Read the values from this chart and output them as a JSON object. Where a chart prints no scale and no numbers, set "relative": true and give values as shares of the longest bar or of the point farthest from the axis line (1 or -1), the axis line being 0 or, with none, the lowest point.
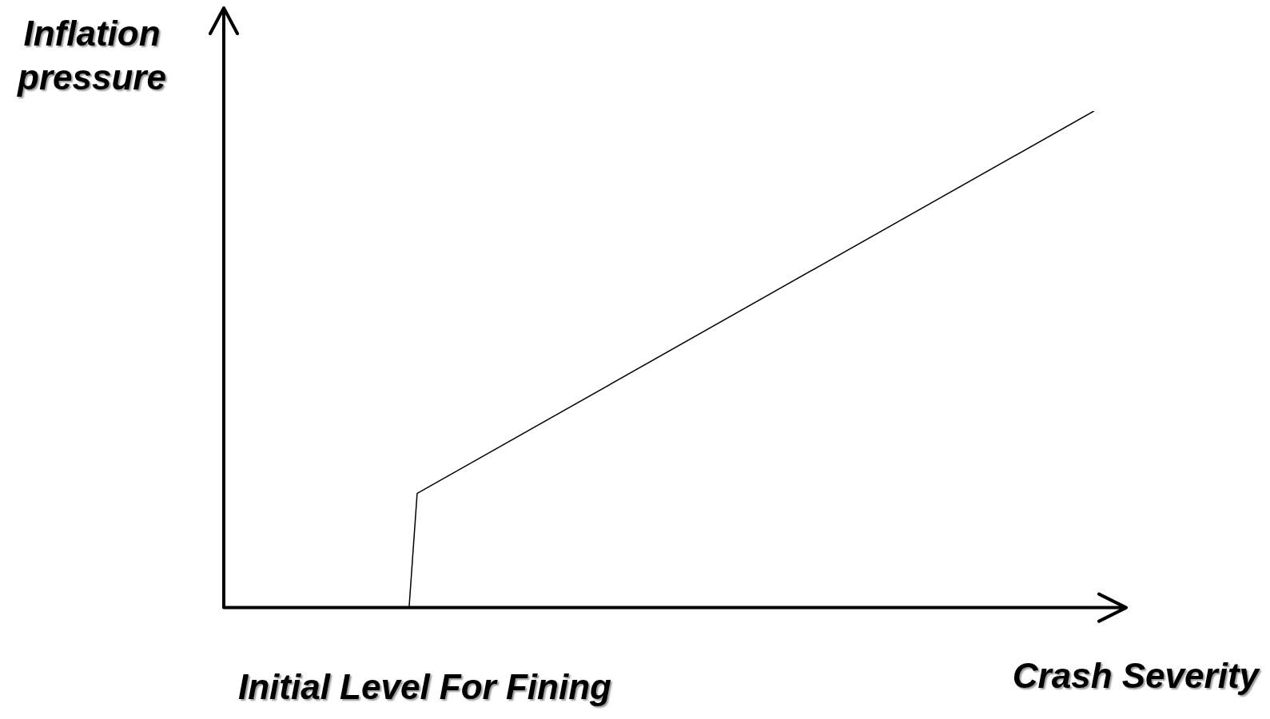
{
  "chart_data": {
    "type": "line",
    "relative": true,
    "xlabel": "Crash Severity",
    "ylabel": "Inflation pressure",
    "annotations": [
      "Initial Level For Fining"
    ],
    "categories": [
      null,
      null,
      null,
      null,
      null,
      null,
      null,
      null,
      null,
      null,
      null,
      null,
      null,
      null,
      null,
      null,
      null,
      null,
      null,
      null,
      null,
      null,
      null,
      null,
      null,
      null,
      null,
      null,
      null,
      null,
      null,
      null,
      null,
      null,
      null,
      null,
      null,
      null,
      null,
      null,
      null,
      null,
      null,
      null,
      null,
      null,
      null,
      null,
      null,
      null,
      null,
      null,
      null,
      null,
      null,
      null,
      null,
      null,
      null,
      null,
      null,
      null,
      null,
      null,
      null,
      null,
      null,
      null,
      null,
      null,
      null,
      null,
      null,
      null,
      null,
      null,
      null,
      null,
      null,
      null,
      null,
      null,
      null,
      null,
      null,
      null,
      null,
      null,
      null,
      null,
      null,
      null,
      null,
      null,
      null,
      null,
      null,
      null,
      null,
      null,
      null,
      null,
      null,
      null,
      null,
      null,
      null,
      null,
      null,
      null,
      null,
      null,
      null
    ],
    "series": [
      {
        "color": "#000000",
        "values": [
          null,
          null,
          null,
          null,
          null,
          null,
          null,
          null,
          null,
          null,
          null,
          null,
          null,
          null,
          null,
          null,
          null,
          null,
          null,
          null,
          null,
          null,
          null,
          0,
          0.23,
          null,
          null,
          null,
          null,
          null,
          null,
          null,
          null,
          null,
          null,
          null,
          null,
          null,
          null,
          null,
          null,
          null,
          null,
          null,
          null,
          null,
          null,
          null,
          null,
          null,
          null,
          null,
          null,
          null,
          null,
          null,
          null,
          null,
          null,
          null,
          null,
          null,
          null,
          null,
          null,
          null,
          null,
          null,
          null,
          null,
          null,
          null,
          null,
          null,
          null,
          null,
          null,
          null,
          null,
          null,
          null,
          null,
          null,
          null,
          null,
          null,
          null,
          null,
          null,
          null,
          null,
          null,
          null,
          null,
          null,
          null,
          null,
          null,
          null,
          null,
          null,
          null,
          null,
          null,
          null,
          null,
          null,
          null,
          1,
          null,
          null,
          null,
          null
        ]
      }
    ],
    "legend": false,
    "marker": "none",
    "line_style": "solid"
  }
}
